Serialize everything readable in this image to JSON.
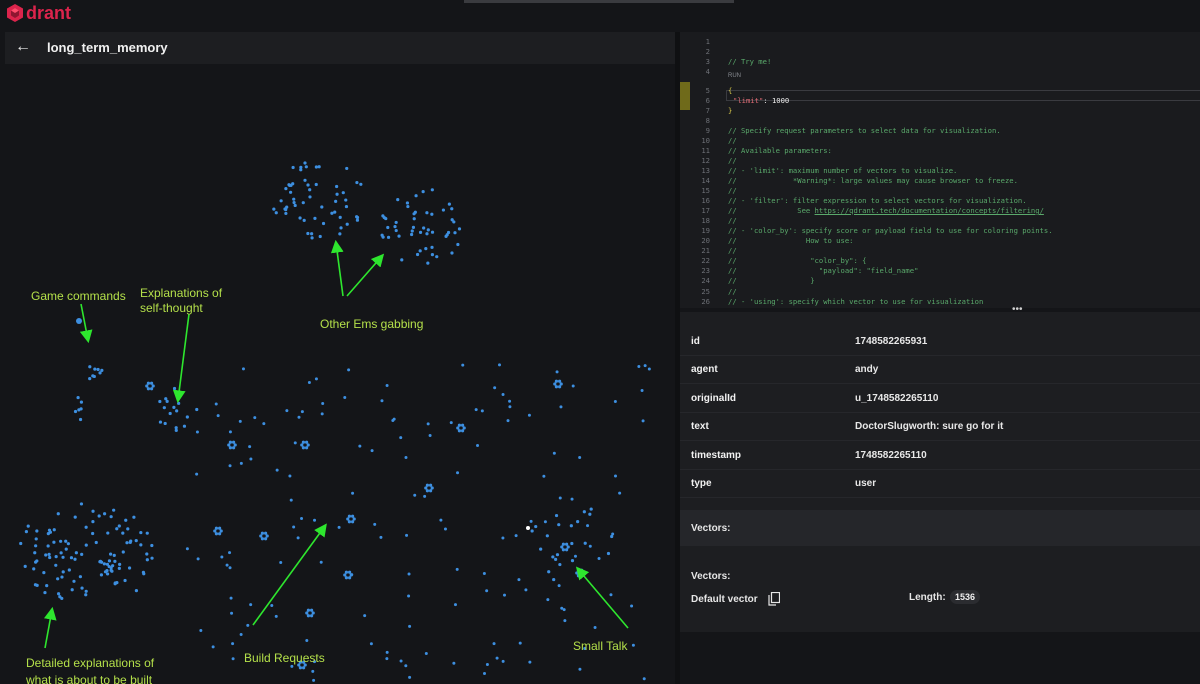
{
  "app": {
    "logo_text": "drant",
    "brand_color": "#dc244c"
  },
  "header": {
    "title": "long_term_memory",
    "back_icon": "arrow-left-icon"
  },
  "annotations": {
    "game_commands": "Game commands",
    "self_thought_1": "Explanations of",
    "self_thought_2": "self-thought",
    "other_ems": "Other Ems gabbing",
    "detailed_1": "Detailed explanations of",
    "detailed_2": "what is about to be built",
    "build_requests": "Build Requests",
    "small_talk": "Small Talk",
    "color": "#b4e04a",
    "arrow_color": "#2ee62e"
  },
  "point_color": "#3d8fe0",
  "editor": {
    "run_label": "RUN",
    "lines": [
      {
        "n": "1",
        "text": ""
      },
      {
        "n": "2",
        "text": ""
      },
      {
        "n": "3",
        "text": "// Try me!"
      },
      {
        "n": "4",
        "text": ""
      },
      {
        "n": "5",
        "text": "{"
      },
      {
        "n": "6",
        "key": "\"limit\"",
        "sep": ": ",
        "num": "1000"
      },
      {
        "n": "7",
        "text": "}"
      },
      {
        "n": "8",
        "text": ""
      },
      {
        "n": "9",
        "text": "// Specify request parameters to select data for visualization."
      },
      {
        "n": "10",
        "text": "//"
      },
      {
        "n": "11",
        "text": "// Available parameters:"
      },
      {
        "n": "12",
        "text": "//"
      },
      {
        "n": "13",
        "text": "// - 'limit': maximum number of vectors to visualize."
      },
      {
        "n": "14",
        "text": "//             *Warning*: large values may cause browser to freeze."
      },
      {
        "n": "15",
        "text": "//"
      },
      {
        "n": "16",
        "text": "// - 'filter': filter expression to select vectors for visualization."
      },
      {
        "n": "17",
        "text": "//              See ",
        "link": "https://qdrant.tech/documentation/concepts/filtering/"
      },
      {
        "n": "18",
        "text": "//"
      },
      {
        "n": "19",
        "text": "// - 'color_by': specify score or payload field to use for coloring points."
      },
      {
        "n": "20",
        "text": "//                How to use:"
      },
      {
        "n": "21",
        "text": "//"
      },
      {
        "n": "22",
        "text": "//                 \"color_by\": {"
      },
      {
        "n": "23",
        "text": "//                   \"payload\": \"field_name\""
      },
      {
        "n": "24",
        "text": "//                 }"
      },
      {
        "n": "25",
        "text": "//"
      },
      {
        "n": "26",
        "text": "// - 'using': specify which vector to use for visualization"
      }
    ]
  },
  "details": {
    "fields": [
      {
        "key": "id",
        "value": "1748582265931"
      },
      {
        "key": "agent",
        "value": "andy"
      },
      {
        "key": "originalId",
        "value": "u_1748582265110"
      },
      {
        "key": "text",
        "value": "DoctorSlugworth: sure go for it"
      },
      {
        "key": "timestamp",
        "value": "1748582265110"
      },
      {
        "key": "type",
        "value": "user"
      }
    ],
    "vectors_header": "Vectors:",
    "vectors_label": "Vectors:",
    "default_vector_label": "Default vector",
    "length_label": "Length:",
    "length_value": "1536"
  }
}
